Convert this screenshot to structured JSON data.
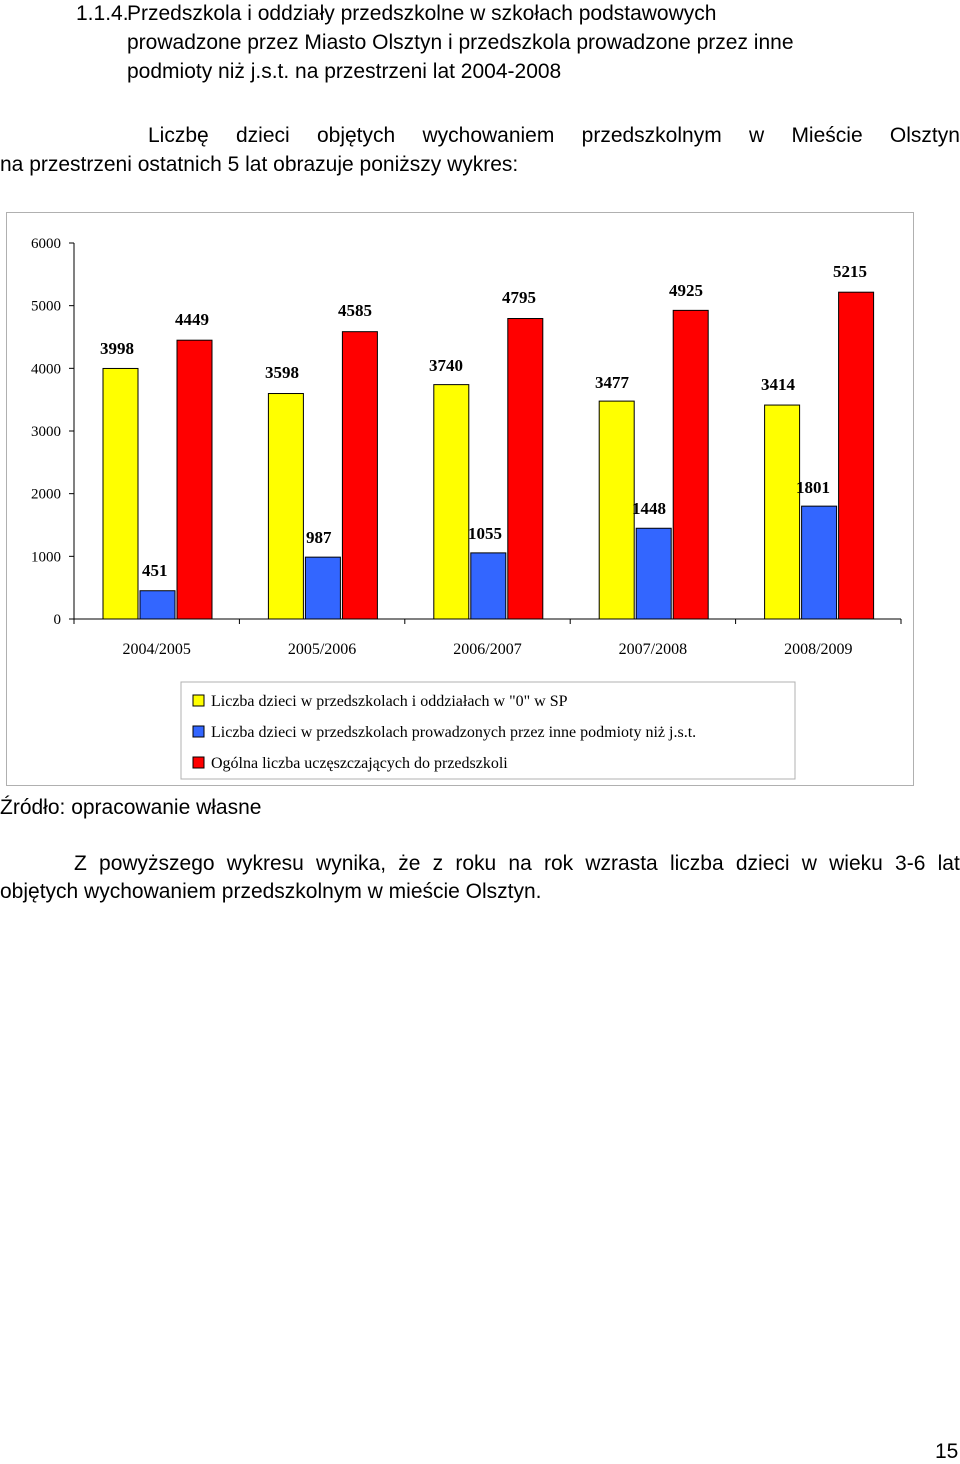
{
  "heading": {
    "number": "1.1.4.",
    "line1": "Przedszkola i oddziały przedszkolne w szkołach podstawowych",
    "line2": "prowadzone przez Miasto Olsztyn i przedszkola prowadzone przez inne",
    "line3": "podmioty niż j.s.t. na przestrzeni lat 2004-2008"
  },
  "intro": {
    "line1_words": [
      "Liczbę",
      "dzieci",
      "objętych",
      "wychowaniem",
      "przedszkolnym",
      "w",
      "Mieście",
      "Olsztyn"
    ],
    "line2": "na przestrzeni ostatnich 5 lat obrazuje poniższy wykres:"
  },
  "chart_data": {
    "type": "bar",
    "categories": [
      "2004/2005",
      "2005/2006",
      "2006/2007",
      "2007/2008",
      "2008/2009"
    ],
    "series": [
      {
        "name": "Liczba dzieci w przedszkolach i oddziałach w \"0\" w SP",
        "color": "#ffff00",
        "values": [
          3998,
          3598,
          3740,
          3477,
          3414
        ]
      },
      {
        "name": "Liczba dzieci w przedszkolach prowadzonych przez inne podmioty niż j.s.t.",
        "color": "#3366ff",
        "values": [
          451,
          987,
          1055,
          1448,
          1801
        ]
      },
      {
        "name": "Ogólna liczba uczęszczających do przedszkoli",
        "color": "#ff0000",
        "values": [
          4449,
          4585,
          4795,
          4925,
          5215
        ]
      }
    ],
    "yticks": [
      "0",
      "1000",
      "2000",
      "3000",
      "4000",
      "5000",
      "6000"
    ],
    "ylim": [
      0,
      6000
    ],
    "grid": false,
    "legend_position": "bottom"
  },
  "source_note": "Źródło: opracowanie własne",
  "conclusion": {
    "line1_words": [
      "Z",
      "powyższego",
      "wykresu",
      "wynika,",
      "że",
      "z",
      "roku",
      "na",
      "rok",
      "wzrasta",
      "liczba",
      "dzieci",
      "w",
      "wieku",
      "3-6",
      "lat"
    ],
    "line2": "objętych wychowaniem przedszkolnym w mieście Olsztyn."
  },
  "page_number": "15"
}
